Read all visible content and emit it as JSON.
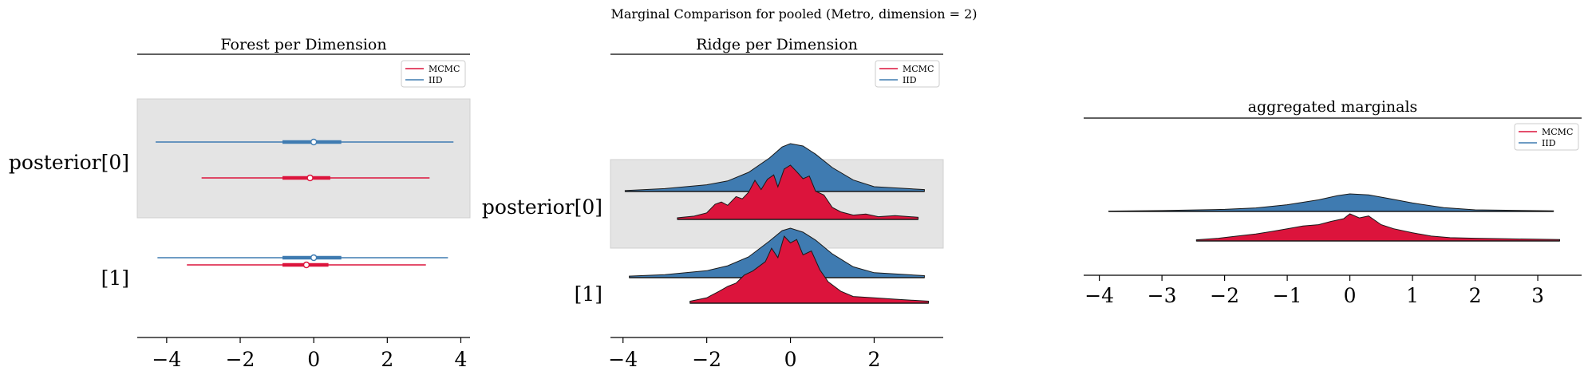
{
  "figure": {
    "suptitle": "Marginal Comparison for pooled (Metro, dimension = 2)"
  },
  "colors": {
    "mcmc": "#dc143c",
    "iid": "#3f7bb1",
    "band": "#e4e4e4",
    "outline": "#1a1a1a"
  },
  "chart_data": [
    {
      "type": "forest",
      "title": "Forest per Dimension",
      "xlim": [
        -4.8,
        4.25
      ],
      "xticks": [
        -4,
        -2,
        0,
        2,
        4
      ],
      "xtick_labels": [
        "−4",
        "−2",
        "0",
        "2",
        "4"
      ],
      "y_labels": [
        "posterior[0]",
        "[1]"
      ],
      "legend": [
        "MCMC",
        "IID"
      ],
      "legend_position": "top-right",
      "series": [
        {
          "name": "IID",
          "dim": 0,
          "hdi94": [
            -4.3,
            3.8
          ],
          "hdi50": [
            -0.85,
            0.75
          ],
          "median": 0.0
        },
        {
          "name": "MCMC",
          "dim": 0,
          "hdi94": [
            -3.05,
            3.15
          ],
          "hdi50": [
            -0.85,
            0.45
          ],
          "median": -0.1
        },
        {
          "name": "IID",
          "dim": 1,
          "hdi94": [
            -4.25,
            3.65
          ],
          "hdi50": [
            -0.85,
            0.75
          ],
          "median": 0.0
        },
        {
          "name": "MCMC",
          "dim": 1,
          "hdi94": [
            -3.45,
            3.05
          ],
          "hdi50": [
            -0.85,
            0.4
          ],
          "median": -0.2
        }
      ]
    },
    {
      "type": "ridge",
      "title": "Ridge per Dimension",
      "xlim": [
        -4.3,
        3.65
      ],
      "xticks": [
        -4,
        -2,
        0,
        2
      ],
      "xtick_labels": [
        "−4",
        "−2",
        "0",
        "2"
      ],
      "y_labels": [
        "posterior[0]",
        "[1]"
      ],
      "legend": [
        "MCMC",
        "IID"
      ],
      "legend_position": "top-right",
      "series": [
        {
          "name": "IID",
          "dim": 0,
          "range": [
            -3.95,
            3.2
          ],
          "x": [
            -3.95,
            -3.0,
            -2.0,
            -1.5,
            -1.0,
            -0.5,
            -0.2,
            0.0,
            0.3,
            0.6,
            1.0,
            1.5,
            2.0,
            3.2
          ],
          "density": [
            0.02,
            0.06,
            0.14,
            0.22,
            0.4,
            0.7,
            0.93,
            1.0,
            0.95,
            0.78,
            0.5,
            0.24,
            0.1,
            0.04
          ]
        },
        {
          "name": "MCMC",
          "dim": 0,
          "range": [
            -2.7,
            3.05
          ],
          "x": [
            -2.7,
            -2.3,
            -2.0,
            -1.8,
            -1.65,
            -1.5,
            -1.3,
            -1.15,
            -1.0,
            -0.85,
            -0.7,
            -0.55,
            -0.4,
            -0.3,
            -0.15,
            0.0,
            0.15,
            0.3,
            0.45,
            0.6,
            0.8,
            1.0,
            1.2,
            1.5,
            1.8,
            2.1,
            2.5,
            3.05
          ],
          "density": [
            0.03,
            0.06,
            0.12,
            0.28,
            0.32,
            0.26,
            0.42,
            0.38,
            0.5,
            0.72,
            0.55,
            0.74,
            0.82,
            0.6,
            0.93,
            1.0,
            0.88,
            0.75,
            0.8,
            0.52,
            0.45,
            0.22,
            0.14,
            0.08,
            0.1,
            0.05,
            0.07,
            0.04
          ]
        },
        {
          "name": "IID",
          "dim": 1,
          "range": [
            -3.85,
            3.2
          ],
          "x": [
            -3.85,
            -3.0,
            -2.0,
            -1.5,
            -1.0,
            -0.5,
            -0.2,
            0.0,
            0.3,
            0.6,
            1.0,
            1.5,
            2.0,
            3.2
          ],
          "density": [
            0.03,
            0.06,
            0.14,
            0.24,
            0.42,
            0.74,
            0.95,
            1.0,
            0.92,
            0.76,
            0.48,
            0.22,
            0.1,
            0.04
          ]
        },
        {
          "name": "MCMC",
          "dim": 1,
          "range": [
            -2.4,
            3.3
          ],
          "x": [
            -2.4,
            -2.0,
            -1.7,
            -1.5,
            -1.3,
            -1.1,
            -0.9,
            -0.75,
            -0.6,
            -0.45,
            -0.3,
            -0.15,
            0.0,
            0.15,
            0.3,
            0.5,
            0.7,
            0.9,
            1.2,
            1.5,
            2.0,
            2.5,
            3.3
          ],
          "density": [
            0.03,
            0.08,
            0.18,
            0.25,
            0.3,
            0.42,
            0.48,
            0.55,
            0.62,
            0.82,
            0.68,
            1.0,
            0.9,
            0.95,
            0.72,
            0.78,
            0.5,
            0.32,
            0.18,
            0.1,
            0.08,
            0.06,
            0.03
          ]
        }
      ]
    },
    {
      "type": "ridge",
      "title": "aggregated marginals",
      "xlim": [
        -4.25,
        3.7
      ],
      "xticks": [
        -4,
        -3,
        -2,
        -1,
        0,
        1,
        2,
        3
      ],
      "xtick_labels": [
        "−4",
        "−3",
        "−2",
        "−1",
        "0",
        "1",
        "2",
        "3"
      ],
      "legend": [
        "MCMC",
        "IID"
      ],
      "legend_position": "top-right",
      "series": [
        {
          "name": "IID",
          "range": [
            -3.85,
            3.25
          ],
          "x": [
            -3.85,
            -3.0,
            -2.0,
            -1.5,
            -1.0,
            -0.5,
            -0.2,
            0.0,
            0.3,
            0.6,
            1.0,
            1.5,
            2.0,
            3.25
          ],
          "density": [
            0.02,
            0.05,
            0.12,
            0.2,
            0.38,
            0.66,
            0.9,
            1.0,
            0.94,
            0.75,
            0.48,
            0.22,
            0.09,
            0.03
          ]
        },
        {
          "name": "MCMC",
          "range": [
            -2.45,
            3.35
          ],
          "x": [
            -2.45,
            -2.1,
            -1.8,
            -1.5,
            -1.25,
            -1.0,
            -0.75,
            -0.5,
            -0.3,
            -0.1,
            0.0,
            0.15,
            0.3,
            0.5,
            0.7,
            1.0,
            1.3,
            1.6,
            2.0,
            2.5,
            3.35
          ],
          "density": [
            0.04,
            0.1,
            0.18,
            0.26,
            0.35,
            0.45,
            0.55,
            0.6,
            0.72,
            0.82,
            1.0,
            0.85,
            0.92,
            0.6,
            0.45,
            0.3,
            0.18,
            0.12,
            0.1,
            0.08,
            0.05
          ]
        }
      ]
    }
  ]
}
